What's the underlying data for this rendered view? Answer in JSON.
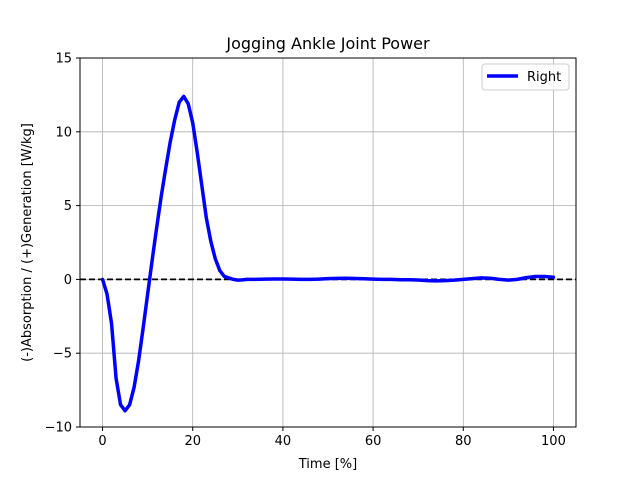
{
  "chart_data": {
    "type": "line",
    "title": "Jogging Ankle Joint Power",
    "xlabel": "Time [%]",
    "ylabel": "(-)Absorption / (+)Generation [W/kg]",
    "xlim": [
      -5,
      105
    ],
    "ylim": [
      -10,
      15
    ],
    "xticks": [
      0,
      20,
      40,
      60,
      80,
      100
    ],
    "yticks": [
      -10,
      -5,
      0,
      5,
      10,
      15
    ],
    "xtick_labels": [
      "0",
      "20",
      "40",
      "60",
      "80",
      "100"
    ],
    "ytick_labels": [
      "−10",
      "−5",
      "0",
      "5",
      "10",
      "15"
    ],
    "grid": true,
    "legend_position": "top-right",
    "reference_line": {
      "y": 0,
      "style": "dashed",
      "color": "#000000"
    },
    "series": [
      {
        "name": "Right",
        "color": "#0000ff",
        "x": [
          0,
          1,
          2,
          3,
          4,
          5,
          6,
          7,
          8,
          9,
          10,
          11,
          12,
          13,
          14,
          15,
          16,
          17,
          18,
          19,
          20,
          21,
          22,
          23,
          24,
          25,
          26,
          27,
          28,
          29,
          30,
          31,
          32,
          34,
          36,
          38,
          40,
          42,
          44,
          46,
          48,
          50,
          52,
          54,
          56,
          58,
          60,
          62,
          64,
          66,
          68,
          70,
          72,
          74,
          76,
          78,
          80,
          82,
          84,
          86,
          88,
          90,
          92,
          94,
          96,
          98,
          100
        ],
        "values": [
          0.0,
          -1.0,
          -3.0,
          -6.7,
          -8.5,
          -8.9,
          -8.5,
          -7.3,
          -5.5,
          -3.3,
          -1.0,
          1.3,
          3.5,
          5.6,
          7.5,
          9.3,
          10.8,
          12.0,
          12.4,
          11.9,
          10.6,
          8.6,
          6.4,
          4.2,
          2.6,
          1.4,
          0.6,
          0.2,
          0.1,
          0.0,
          -0.05,
          -0.03,
          0.0,
          0.0,
          0.02,
          0.03,
          0.03,
          0.02,
          0.0,
          0.0,
          0.02,
          0.05,
          0.07,
          0.08,
          0.06,
          0.04,
          0.02,
          0.0,
          0.0,
          -0.02,
          -0.02,
          -0.04,
          -0.08,
          -0.1,
          -0.08,
          -0.05,
          0.0,
          0.05,
          0.1,
          0.08,
          0.0,
          -0.05,
          0.0,
          0.12,
          0.2,
          0.2,
          0.15
        ],
        "x_sorted_note": ""
      }
    ]
  }
}
